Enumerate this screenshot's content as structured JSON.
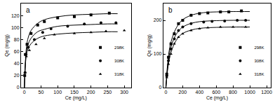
{
  "chart_data": [
    {
      "type": "scatter",
      "title": "a",
      "x_label": "Ce (mg/L)",
      "y_label": "Qe (mg/g)",
      "xlim": [
        -10,
        320
      ],
      "xticks": [
        0,
        50,
        100,
        150,
        200,
        250,
        300
      ],
      "ylim": [
        0,
        140
      ],
      "yticks": [
        0,
        20,
        40,
        60,
        80,
        100,
        120
      ],
      "grid": false,
      "legend": "lower right",
      "series": [
        {
          "name": "298K",
          "color": "#000000",
          "marker": "square",
          "x": [
            1,
            3,
            8,
            20,
            40,
            60,
            100,
            150,
            200,
            255
          ],
          "values": [
            20,
            55,
            72,
            90,
            104,
            110,
            116,
            118,
            121,
            124
          ],
          "fit": {
            "x": [
              0,
              5,
              10,
              20,
              40,
              60,
              100,
              150,
              200,
              250,
              280
            ],
            "values": [
              0,
              60,
              80,
              95,
              107,
              113,
              118,
              121,
              122,
              123,
              123
            ]
          }
        },
        {
          "name": "308K",
          "color": "#000000",
          "marker": "circle",
          "x": [
            2,
            5,
            12,
            30,
            55,
            80,
            130,
            180,
            230,
            275
          ],
          "values": [
            25,
            55,
            67,
            80,
            92,
            98,
            102,
            106,
            108,
            108
          ],
          "fit": {
            "x": [
              0,
              5,
              10,
              20,
              40,
              60,
              100,
              150,
              200,
              250,
              280
            ],
            "values": [
              0,
              55,
              70,
              82,
              93,
              97,
              102,
              104,
              105,
              106,
              106
            ]
          }
        },
        {
          "name": "318K",
          "color": "#000000",
          "marker": "triangle",
          "x": [
            2,
            6,
            15,
            35,
            60,
            90,
            150,
            200,
            245,
            300
          ],
          "values": [
            25,
            52,
            62,
            72,
            82,
            88,
            90,
            92,
            94,
            95
          ],
          "fit": {
            "x": [
              0,
              5,
              10,
              20,
              40,
              60,
              100,
              150,
              200,
              250,
              280
            ],
            "values": [
              0,
              50,
              63,
              73,
              82,
              86,
              89,
              91,
              92,
              93,
              93
            ]
          }
        }
      ]
    },
    {
      "type": "scatter",
      "title": "b",
      "x_label": "Ce (mg/L)",
      "y_label": "Qe (mg/g)",
      "xlim": [
        -30,
        1250
      ],
      "xticks": [
        0,
        200,
        400,
        600,
        800,
        1000,
        1200
      ],
      "ylim": [
        0,
        250
      ],
      "yticks": [
        0,
        100,
        200
      ],
      "grid": false,
      "legend": "lower right",
      "series": [
        {
          "name": "298K",
          "color": "#000000",
          "marker": "square",
          "x": [
            10,
            30,
            60,
            100,
            150,
            200,
            300,
            400,
            500,
            650,
            750,
            900
          ],
          "values": [
            40,
            90,
            130,
            160,
            190,
            200,
            215,
            220,
            222,
            225,
            225,
            228
          ],
          "fit": {
            "x": [
              0,
              20,
              50,
              100,
              150,
              200,
              300,
              400,
              500,
              600,
              800,
              1000
            ],
            "values": [
              0,
              70,
              125,
              165,
              188,
              202,
              215,
              221,
              224,
              225,
              226,
              226
            ]
          }
        },
        {
          "name": "308K",
          "color": "#000000",
          "marker": "circle",
          "x": [
            10,
            30,
            60,
            100,
            150,
            200,
            300,
            450,
            550,
            700,
            850,
            950
          ],
          "values": [
            35,
            80,
            115,
            145,
            170,
            180,
            190,
            195,
            197,
            198,
            200,
            200
          ],
          "fit": {
            "x": [
              0,
              20,
              50,
              100,
              150,
              200,
              300,
              400,
              500,
              600,
              800,
              1000
            ],
            "values": [
              0,
              60,
              110,
              148,
              168,
              180,
              191,
              196,
              198,
              199,
              200,
              200
            ]
          }
        },
        {
          "name": "318K",
          "color": "#000000",
          "marker": "triangle",
          "x": [
            10,
            30,
            60,
            100,
            150,
            200,
            300,
            400,
            500,
            650,
            800,
            950
          ],
          "values": [
            30,
            70,
            100,
            130,
            150,
            160,
            170,
            175,
            178,
            180,
            180,
            180
          ],
          "fit": {
            "x": [
              0,
              20,
              50,
              100,
              150,
              200,
              300,
              400,
              500,
              600,
              800,
              1000
            ],
            "values": [
              0,
              52,
              95,
              130,
              150,
              161,
              171,
              176,
              178,
              179,
              180,
              180
            ]
          }
        }
      ]
    }
  ]
}
